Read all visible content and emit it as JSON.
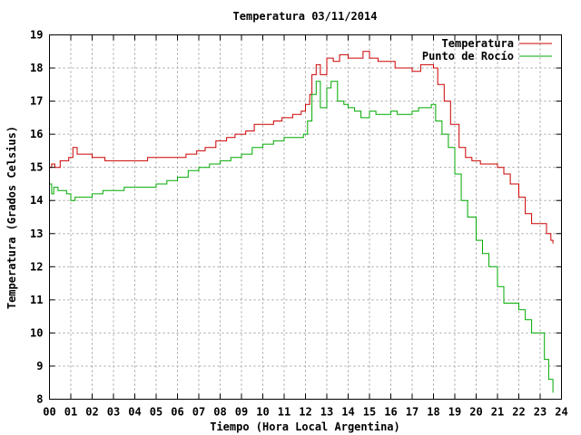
{
  "chart_data": {
    "type": "line",
    "title": "Temperatura 03/11/2014",
    "xlabel": "Tiempo (Hora Local Argentina)",
    "ylabel": "Temperatura (Grados Celsius)",
    "xlim": [
      0,
      24
    ],
    "ylim": [
      8,
      19
    ],
    "x_ticks": [
      "00",
      "01",
      "02",
      "03",
      "04",
      "05",
      "06",
      "07",
      "08",
      "09",
      "10",
      "11",
      "12",
      "13",
      "14",
      "15",
      "16",
      "17",
      "18",
      "19",
      "20",
      "21",
      "22",
      "23",
      "24"
    ],
    "y_ticks": [
      8,
      9,
      10,
      11,
      12,
      13,
      14,
      15,
      16,
      17,
      18,
      19
    ],
    "grid": true,
    "legend_position": "top-right",
    "series": [
      {
        "name": "Temperatura",
        "color": "#cc0000",
        "x": [
          0.0,
          0.1,
          0.25,
          0.5,
          0.9,
          1.1,
          1.3,
          1.6,
          2.0,
          2.6,
          3.2,
          4.0,
          4.6,
          5.0,
          5.5,
          5.9,
          6.4,
          6.9,
          7.3,
          7.8,
          8.3,
          8.7,
          9.2,
          9.6,
          10.0,
          10.5,
          10.9,
          11.4,
          11.8,
          12.0,
          12.2,
          12.3,
          12.5,
          12.7,
          13.0,
          13.3,
          13.6,
          14.0,
          14.4,
          14.7,
          15.0,
          15.4,
          15.8,
          16.2,
          16.6,
          17.0,
          17.4,
          17.8,
          18.0,
          18.2,
          18.5,
          18.8,
          19.2,
          19.5,
          19.8,
          20.2,
          20.6,
          21.0,
          21.3,
          21.6,
          22.0,
          22.3,
          22.6,
          23.0,
          23.3,
          23.5,
          23.6
        ],
        "y": [
          15.0,
          15.1,
          15.0,
          15.2,
          15.3,
          15.6,
          15.4,
          15.4,
          15.3,
          15.2,
          15.2,
          15.2,
          15.3,
          15.3,
          15.3,
          15.3,
          15.4,
          15.5,
          15.6,
          15.8,
          15.9,
          16.0,
          16.1,
          16.3,
          16.3,
          16.4,
          16.5,
          16.6,
          16.7,
          16.9,
          17.2,
          17.8,
          18.1,
          17.8,
          18.3,
          18.2,
          18.4,
          18.3,
          18.3,
          18.5,
          18.3,
          18.2,
          18.2,
          18.0,
          18.0,
          17.9,
          18.1,
          18.1,
          18.0,
          17.5,
          17.0,
          16.3,
          15.6,
          15.3,
          15.2,
          15.1,
          15.1,
          15.0,
          14.8,
          14.5,
          14.1,
          13.6,
          13.3,
          13.3,
          13.0,
          12.8,
          12.7
        ]
      },
      {
        "name": "Punto de Rocío",
        "color": "#00aa00",
        "x": [
          0.0,
          0.1,
          0.2,
          0.4,
          0.8,
          1.0,
          1.2,
          1.5,
          2.0,
          2.5,
          3.0,
          3.5,
          4.0,
          4.6,
          5.0,
          5.5,
          6.0,
          6.5,
          7.0,
          7.5,
          8.0,
          8.5,
          9.0,
          9.5,
          10.0,
          10.5,
          11.0,
          11.5,
          11.9,
          12.1,
          12.3,
          12.5,
          12.7,
          13.0,
          13.2,
          13.5,
          13.8,
          14.0,
          14.3,
          14.6,
          15.0,
          15.3,
          15.6,
          16.0,
          16.3,
          16.6,
          17.0,
          17.3,
          17.6,
          17.9,
          18.1,
          18.4,
          18.7,
          19.0,
          19.3,
          19.6,
          20.0,
          20.3,
          20.6,
          21.0,
          21.3,
          21.6,
          22.0,
          22.3,
          22.6,
          23.0,
          23.2,
          23.4,
          23.6
        ],
        "y": [
          14.5,
          14.2,
          14.4,
          14.3,
          14.2,
          14.0,
          14.1,
          14.1,
          14.2,
          14.3,
          14.3,
          14.4,
          14.4,
          14.4,
          14.5,
          14.6,
          14.7,
          14.9,
          15.0,
          15.1,
          15.2,
          15.3,
          15.4,
          15.6,
          15.7,
          15.8,
          15.9,
          15.9,
          16.0,
          16.4,
          17.2,
          17.6,
          16.8,
          17.4,
          17.6,
          17.0,
          16.9,
          16.8,
          16.7,
          16.5,
          16.7,
          16.6,
          16.6,
          16.7,
          16.6,
          16.6,
          16.7,
          16.8,
          16.8,
          16.9,
          16.4,
          16.0,
          15.6,
          14.8,
          14.0,
          13.5,
          12.8,
          12.4,
          12.0,
          11.4,
          10.9,
          10.9,
          10.7,
          10.4,
          10.0,
          10.0,
          9.2,
          8.6,
          8.2
        ]
      }
    ]
  }
}
